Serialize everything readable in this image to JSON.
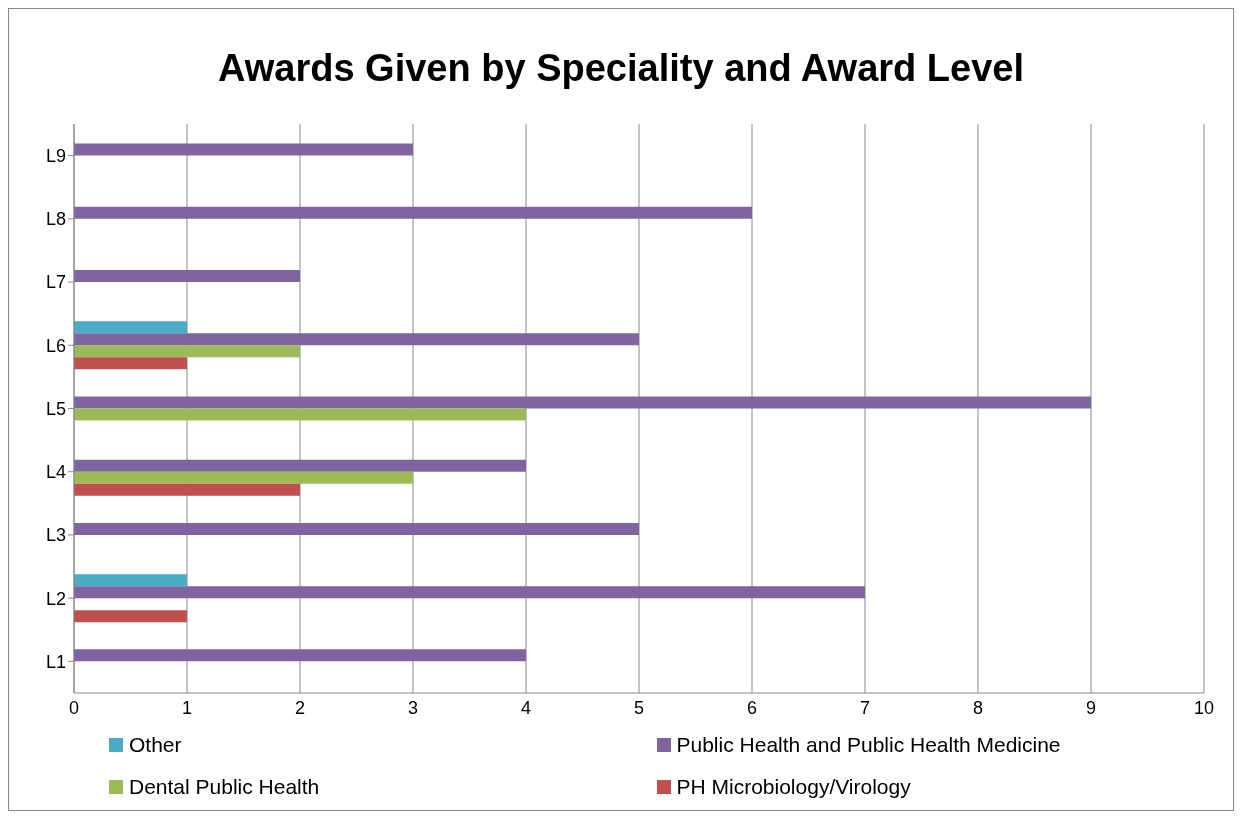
{
  "chart_data": {
    "type": "bar",
    "orientation": "horizontal",
    "title": "Awards Given by Speciality and Award Level",
    "categories": [
      "L9",
      "L8",
      "L7",
      "L6",
      "L5",
      "L4",
      "L3",
      "L2",
      "L1"
    ],
    "series": [
      {
        "name": "Other",
        "color": "#4bacc6",
        "values": [
          null,
          null,
          null,
          1,
          null,
          null,
          null,
          1,
          null
        ]
      },
      {
        "name": "Public Health and Public Health Medicine",
        "color": "#8064a2",
        "values": [
          3,
          6,
          2,
          5,
          9,
          4,
          5,
          7,
          4
        ]
      },
      {
        "name": "Dental Public Health",
        "color": "#9bbb59",
        "values": [
          null,
          null,
          null,
          2,
          4,
          3,
          null,
          null,
          null
        ]
      },
      {
        "name": "PH Microbiology/Virology",
        "color": "#c0504d",
        "values": [
          null,
          null,
          null,
          1,
          null,
          2,
          null,
          1,
          null
        ]
      }
    ],
    "xlim": [
      0,
      10
    ],
    "xticks": [
      0,
      1,
      2,
      3,
      4,
      5,
      6,
      7,
      8,
      9,
      10
    ],
    "grid": "x",
    "legend": "bottom"
  }
}
